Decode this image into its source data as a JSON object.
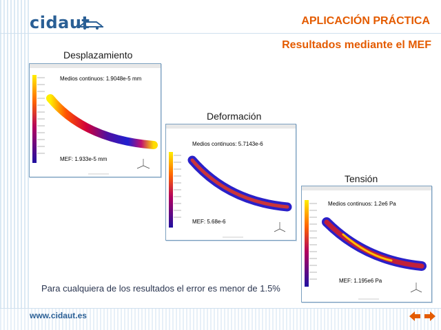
{
  "header": {
    "logo_text": "cidaut",
    "title": "APLICACIÓN PRÁCTICA",
    "subtitle": "Resultados mediante el MEF"
  },
  "panels": [
    {
      "label": "Desplazamiento",
      "top_text": "Medios continuos: 1.9048e-5 mm",
      "bottom_text": "MEF: 1.933e-5 mm"
    },
    {
      "label": "Deformación",
      "top_text": "Medios continuos: 5.7143e-6",
      "bottom_text": "MEF: 5.68e-6"
    },
    {
      "label": "Tensión",
      "top_text": "Medios continuos: 1.2e6 Pa",
      "bottom_text": "MEF: 1.195e6 Pa"
    }
  ],
  "conclusion": "Para cualquiera de los resultados el error es menor de 1.5%",
  "footer": {
    "url": "www.cidaut.es",
    "prev_icon": "arrow-left-icon",
    "next_icon": "arrow-right-icon"
  },
  "colors": {
    "accent": "#e45b00",
    "brand": "#2a5f95"
  }
}
